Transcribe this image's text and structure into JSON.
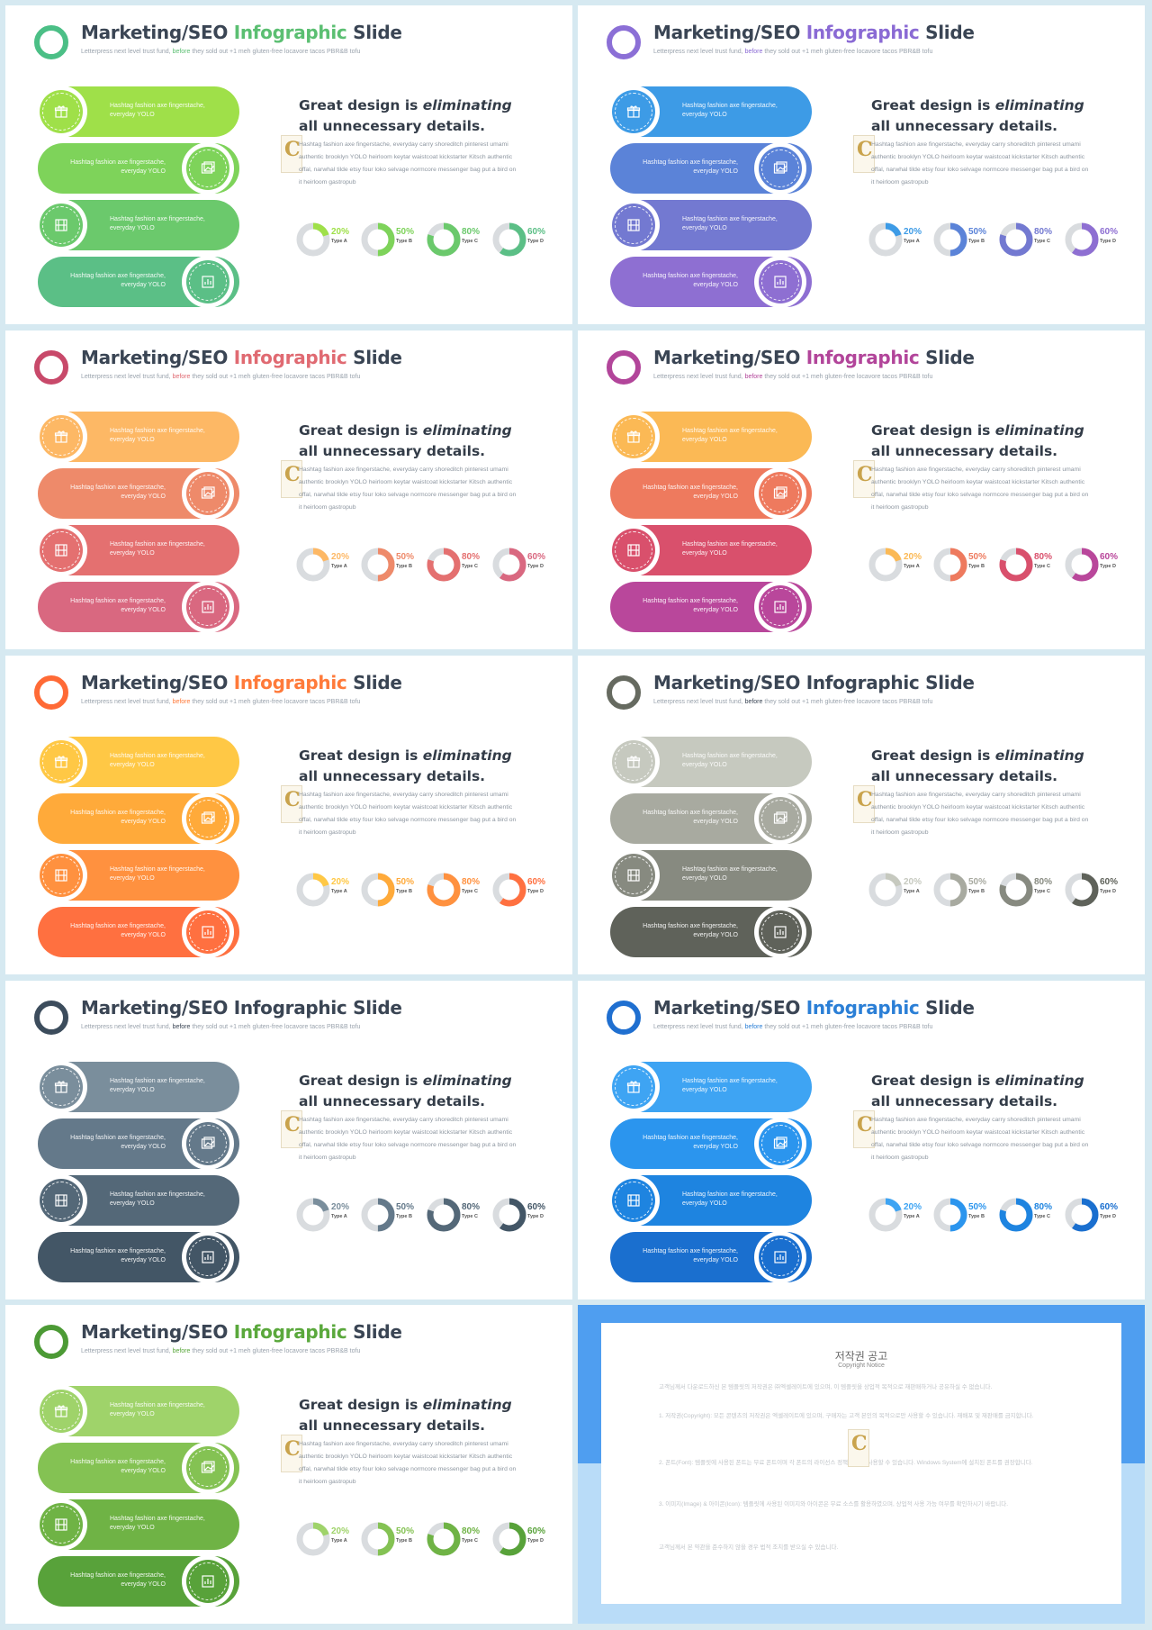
{
  "slide_template": {
    "title_prefix": "Marketing/SEO ",
    "title_highlight": "Infographic",
    "title_suffix": " Slide",
    "subtitle_before": "Letterpress next level trust fund, ",
    "subtitle_highlight": "before",
    "subtitle_after": " they sold out +1 meh gluten-free locavore tacos PBR&B tofu",
    "pill_text": "Hashtag fashion axe fingerstache, everyday YOLO",
    "heading_part1": "Great design is ",
    "heading_em": "eliminating",
    "heading_part2": " all unnecessary details.",
    "body_text": "Hashtag fashion axe fingerstache, everyday carry shoreditch pinterest umami authentic brooklyn YOLO heirloom keytar waistcoat kickstarter Kitsch authentic offal, narwhal tilde etsy four loko selvage normcore messenger bag put a bird on it heirloom gastropub",
    "badge_letter": "C",
    "donuts": [
      {
        "pct": "20%",
        "value": 20,
        "type": "Type A"
      },
      {
        "pct": "50%",
        "value": 50,
        "type": "Type B"
      },
      {
        "pct": "80%",
        "value": 80,
        "type": "Type C"
      },
      {
        "pct": "60%",
        "value": 60,
        "type": "Type D"
      }
    ],
    "icons": [
      "gift-icon",
      "image-icon",
      "film-icon",
      "bar-chart-icon"
    ]
  },
  "themes": [
    {
      "name": "green",
      "accent": "#5bbf72",
      "ring": "#4bbf86",
      "pills": [
        "#9fe049",
        "#7ed35a",
        "#6bc96c",
        "#5bbf86"
      ],
      "donuts": [
        "#9fe049",
        "#7ed35a",
        "#6bc96c",
        "#5bbf86"
      ]
    },
    {
      "name": "purple",
      "accent": "#8a6ad4",
      "ring": "#8b6fd6",
      "pills": [
        "#3d9be6",
        "#5b83d8",
        "#7379d1",
        "#8e6fd2"
      ],
      "donuts": [
        "#3d9be6",
        "#5b83d8",
        "#7379d1",
        "#8e6fd2"
      ]
    },
    {
      "name": "coral",
      "accent": "#e06a72",
      "ring": "#c8496a",
      "pills": [
        "#fdb865",
        "#ee8a6a",
        "#e47070",
        "#d96880"
      ],
      "donuts": [
        "#fdb865",
        "#ee8a6a",
        "#e47070",
        "#d96880"
      ]
    },
    {
      "name": "magenta",
      "accent": "#b2459a",
      "ring": "#b2459a",
      "pills": [
        "#fbb955",
        "#ee7a5e",
        "#d9506c",
        "#b9479b"
      ],
      "donuts": [
        "#fbb955",
        "#ee7a5e",
        "#d9506c",
        "#b9479b"
      ]
    },
    {
      "name": "orange",
      "accent": "#ff7a3a",
      "ring": "#ff6a36",
      "pills": [
        "#ffc845",
        "#ffaa3a",
        "#ff913f",
        "#ff7040"
      ],
      "donuts": [
        "#ffc845",
        "#ffaa3a",
        "#ff913f",
        "#ff7040"
      ]
    },
    {
      "name": "gray",
      "accent": "#3a4554",
      "ring": "#666a60",
      "pills": [
        "#c6c9bf",
        "#a8aaa0",
        "#878a80",
        "#5f625a"
      ],
      "donuts": [
        "#c6c9bf",
        "#a8aaa0",
        "#878a80",
        "#5f625a"
      ]
    },
    {
      "name": "slate",
      "accent": "#3a4554",
      "ring": "#3c4c5c",
      "pills": [
        "#7a8e9c",
        "#64798a",
        "#546878",
        "#435666"
      ],
      "donuts": [
        "#7a8e9c",
        "#64798a",
        "#546878",
        "#435666"
      ]
    },
    {
      "name": "blue",
      "accent": "#2b7fd6",
      "ring": "#1f6fd0",
      "pills": [
        "#3ea4f3",
        "#2b95ee",
        "#1e84e0",
        "#1a6fcf"
      ],
      "donuts": [
        "#3ea4f3",
        "#2b95ee",
        "#1e84e0",
        "#1a6fcf"
      ]
    },
    {
      "name": "leaf",
      "accent": "#5aa83c",
      "ring": "#4c9a35",
      "pills": [
        "#9fd36a",
        "#84c253",
        "#6fb345",
        "#58a23a"
      ],
      "donuts": [
        "#9fd36a",
        "#84c253",
        "#6fb345",
        "#58a23a"
      ]
    }
  ],
  "copyright": {
    "title": "저작권 공고",
    "subtitle": "Copyright Notice",
    "paragraphs": [
      "고객님께서 다운로드하신 본 템플릿의 저작권은 ㈜엑셀레이트에 있으며, 이 템플릿을 상업적 목적으로 재판매하거나 공유하실 수 없습니다.",
      "1. 저작권(Copyright): 모든 콘텐츠의 저작권은 엑셀레이트에 있으며, 구매자는 고객 본인의 목적으로만 사용할 수 있습니다. 재배포 및 재판매를 금지합니다.",
      "2. 폰트(Font): 템플릿에 사용된 폰트는 무료 폰트이며 각 폰트의 라이선스 정책에 따라 사용할 수 있습니다. Windows System에 설치된 폰트를 권장합니다.",
      "3. 이미지(Image) & 아이콘(Icon): 템플릿에 사용된 이미지와 아이콘은 무료 소스를 활용하였으며, 상업적 사용 가능 여부를 확인하시기 바랍니다.",
      "고객님께서 본 약관을 준수하지 않을 경우 법적 조치를 받으실 수 있습니다."
    ],
    "mark_letter": "C"
  }
}
